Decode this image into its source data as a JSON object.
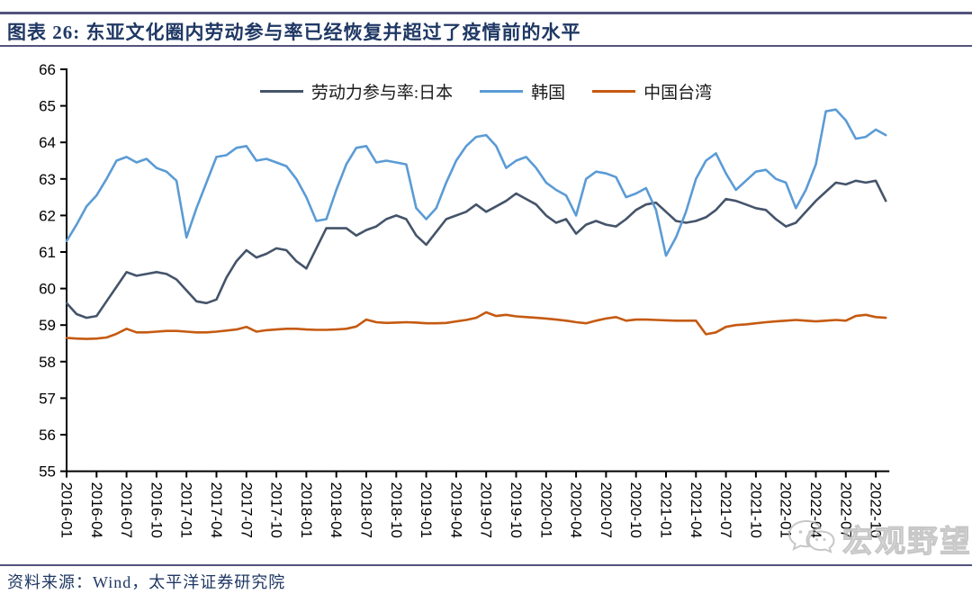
{
  "header": {
    "title": "图表 26:  东亚文化圈内劳动参与率已经恢复并超过了疫情前的水平"
  },
  "footer": {
    "source": "资料来源：Wind，太平洋证券研究院"
  },
  "watermark": {
    "text": "宏观野望",
    "icon": "wechat-icon"
  },
  "colors": {
    "rule": "#53537d",
    "title_text": "#1f3864",
    "source_text": "#1f3864",
    "axis": "#000000",
    "watermark": "#b5b5b5"
  },
  "chart_data": {
    "type": "line",
    "title": "",
    "xlabel": "",
    "ylabel": "",
    "ylim": [
      55,
      66
    ],
    "grid": false,
    "legend_position": "top-center",
    "y_ticks": [
      55,
      56,
      57,
      58,
      59,
      60,
      61,
      62,
      63,
      64,
      65,
      66
    ],
    "x_start": "2016-01",
    "x_end": "2022-11",
    "x_frequency": "monthly",
    "x_tick_every_months": 3,
    "x_tick_labels": [
      "2016-01",
      "2016-04",
      "2016-07",
      "2016-10",
      "2017-01",
      "2017-04",
      "2017-07",
      "2017-10",
      "2018-01",
      "2018-04",
      "2018-07",
      "2018-10",
      "2019-01",
      "2019-04",
      "2019-07",
      "2019-10",
      "2020-01",
      "2020-04",
      "2020-07",
      "2020-10",
      "2021-01",
      "2021-04",
      "2021-07",
      "2021-10",
      "2022-01",
      "2022-04",
      "2022-07",
      "2022-10"
    ],
    "series": [
      {
        "name": "劳动力参与率:日本",
        "color": "#44546a",
        "values": [
          59.6,
          59.3,
          59.2,
          59.25,
          59.65,
          60.05,
          60.45,
          60.35,
          60.4,
          60.45,
          60.4,
          60.25,
          59.95,
          59.65,
          59.6,
          59.7,
          60.3,
          60.75,
          61.05,
          60.85,
          60.95,
          61.1,
          61.05,
          60.75,
          60.55,
          61.1,
          61.65,
          61.65,
          61.65,
          61.45,
          61.6,
          61.7,
          61.9,
          62.0,
          61.9,
          61.45,
          61.2,
          61.55,
          61.9,
          62.0,
          62.1,
          62.3,
          62.1,
          62.25,
          62.4,
          62.6,
          62.45,
          62.3,
          62.0,
          61.8,
          61.9,
          61.5,
          61.75,
          61.85,
          61.75,
          61.7,
          61.9,
          62.15,
          62.3,
          62.35,
          62.1,
          61.85,
          61.8,
          61.85,
          61.95,
          62.15,
          62.45,
          62.4,
          62.3,
          62.2,
          62.15,
          61.9,
          61.7,
          61.8,
          62.1,
          62.4,
          62.65,
          62.9,
          62.85,
          62.95,
          62.9,
          62.95,
          62.4
        ]
      },
      {
        "name": "韩国",
        "color": "#5b9bd5",
        "values": [
          61.3,
          61.75,
          62.25,
          62.55,
          63.0,
          63.5,
          63.6,
          63.45,
          63.55,
          63.3,
          63.2,
          62.95,
          61.4,
          62.2,
          62.9,
          63.6,
          63.65,
          63.85,
          63.9,
          63.5,
          63.55,
          63.45,
          63.35,
          63.0,
          62.5,
          61.85,
          61.9,
          62.7,
          63.4,
          63.85,
          63.9,
          63.45,
          63.5,
          63.45,
          63.4,
          62.2,
          61.9,
          62.2,
          62.9,
          63.5,
          63.9,
          64.15,
          64.2,
          63.9,
          63.3,
          63.5,
          63.6,
          63.3,
          62.9,
          62.7,
          62.55,
          62.0,
          63.0,
          63.2,
          63.15,
          63.05,
          62.5,
          62.6,
          62.75,
          62.15,
          60.9,
          61.4,
          62.1,
          63.0,
          63.5,
          63.7,
          63.15,
          62.7,
          62.95,
          63.2,
          63.25,
          63.0,
          62.9,
          62.2,
          62.7,
          63.4,
          64.85,
          64.9,
          64.6,
          64.1,
          64.15,
          64.35,
          64.2
        ]
      },
      {
        "name": "中国台湾",
        "color": "#c55a11",
        "values": [
          58.65,
          58.63,
          58.62,
          58.63,
          58.66,
          58.76,
          58.9,
          58.8,
          58.8,
          58.82,
          58.84,
          58.84,
          58.82,
          58.8,
          58.8,
          58.82,
          58.85,
          58.88,
          58.95,
          58.82,
          58.86,
          58.88,
          58.9,
          58.9,
          58.88,
          58.87,
          58.87,
          58.88,
          58.9,
          58.96,
          59.15,
          59.08,
          59.06,
          59.07,
          59.08,
          59.07,
          59.05,
          59.05,
          59.06,
          59.1,
          59.14,
          59.2,
          59.35,
          59.25,
          59.28,
          59.24,
          59.22,
          59.2,
          59.18,
          59.15,
          59.12,
          59.08,
          59.05,
          59.12,
          59.18,
          59.22,
          59.12,
          59.15,
          59.15,
          59.14,
          59.13,
          59.12,
          59.12,
          59.12,
          58.75,
          58.8,
          58.95,
          59.0,
          59.02,
          59.05,
          59.08,
          59.1,
          59.12,
          59.14,
          59.12,
          59.1,
          59.12,
          59.14,
          59.12,
          59.25,
          59.28,
          59.22,
          59.2
        ]
      }
    ]
  }
}
